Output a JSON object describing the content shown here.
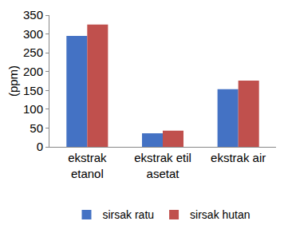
{
  "chart_data": {
    "type": "bar",
    "y_label": "(ppm)",
    "categories": [
      "ekstrak etanol",
      "ekstrak etil asetat",
      "ekstrak air"
    ],
    "series": [
      {
        "name": "sirsak ratu",
        "color": "#4472c4",
        "values": [
          295,
          36,
          153
        ]
      },
      {
        "name": "sirsak hutan",
        "color": "#c0504d",
        "values": [
          325,
          43,
          176
        ]
      }
    ],
    "ylim": [
      0,
      350
    ],
    "yticks": [
      0,
      50,
      100,
      150,
      200,
      250,
      300,
      350
    ],
    "grid": false,
    "legend": "bottom"
  }
}
